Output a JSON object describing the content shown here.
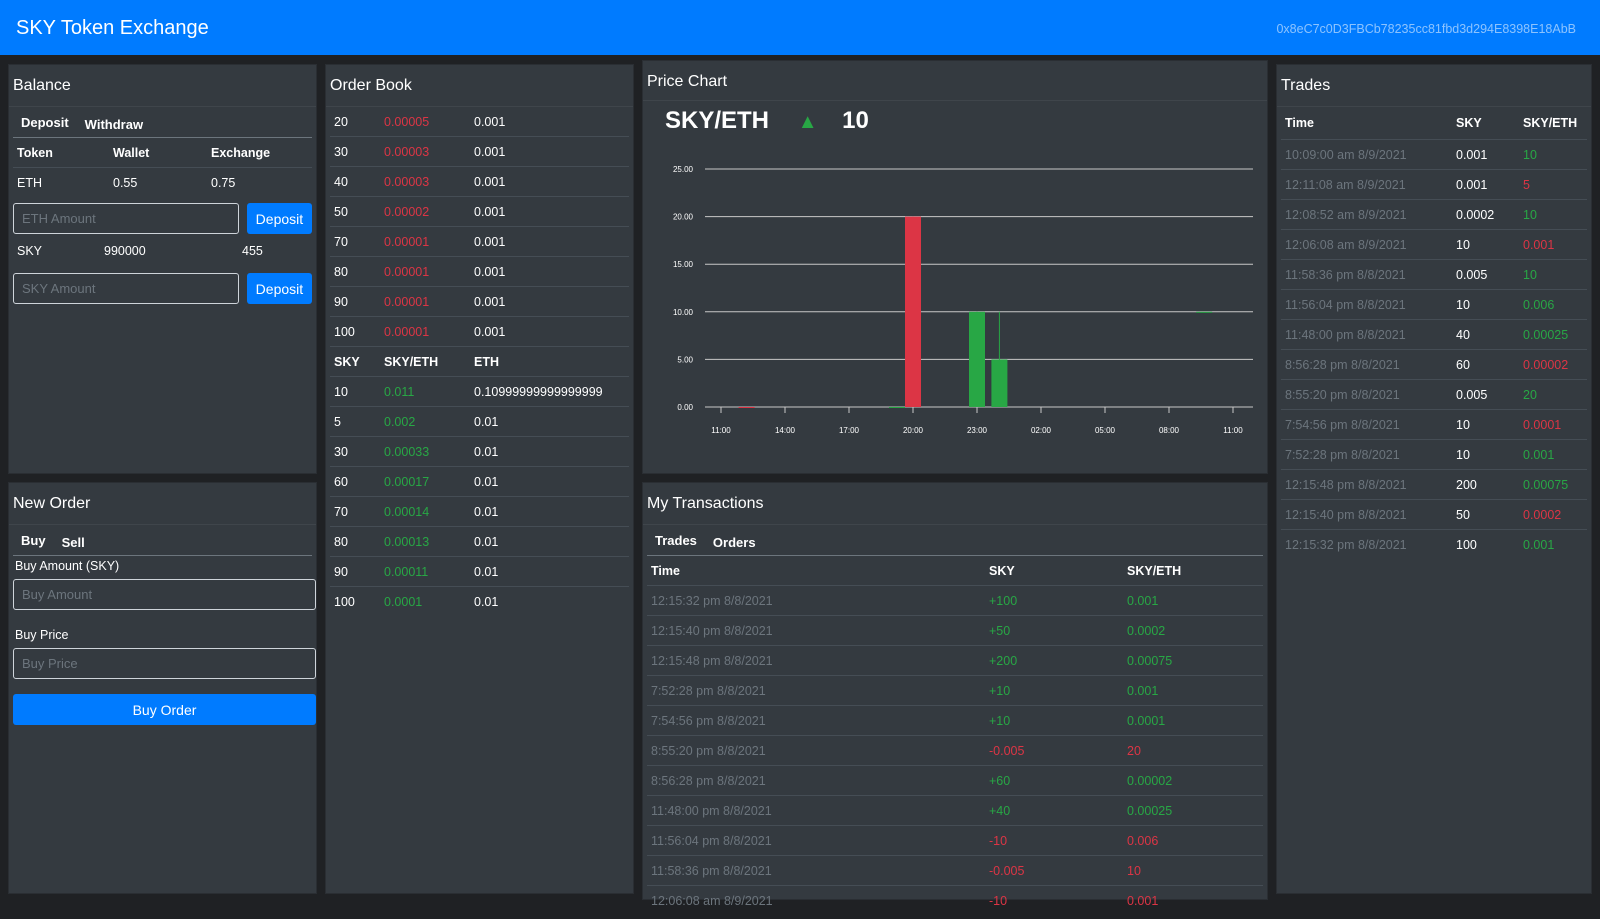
{
  "header": {
    "title": "SKY Token Exchange",
    "account": "0x8eC7c0D3FBCb78235cc81fbd3d294E8398E18AbB"
  },
  "balance": {
    "title": "Balance",
    "tabs": [
      "Deposit",
      "Withdraw"
    ],
    "columns": [
      "Token",
      "Wallet",
      "Exchange"
    ],
    "eth": {
      "token": "ETH",
      "wallet": "0.55",
      "exchange": "0.75",
      "placeholder": "ETH Amount",
      "button": "Deposit"
    },
    "sky": {
      "token": "SKY",
      "wallet": "990000",
      "exchange": "455",
      "placeholder": "SKY Amount",
      "button": "Deposit"
    }
  },
  "new_order": {
    "title": "New Order",
    "tabs": [
      "Buy",
      "Sell"
    ],
    "amount_label": "Buy Amount (SKY)",
    "amount_placeholder": "Buy Amount",
    "price_label": "Buy Price",
    "price_placeholder": "Buy Price",
    "submit": "Buy Order"
  },
  "order_book": {
    "title": "Order Book",
    "sell_orders": [
      [
        "20",
        "0.00005",
        "0.001"
      ],
      [
        "30",
        "0.00003",
        "0.001"
      ],
      [
        "40",
        "0.00003",
        "0.001"
      ],
      [
        "50",
        "0.00002",
        "0.001"
      ],
      [
        "70",
        "0.00001",
        "0.001"
      ],
      [
        "80",
        "0.00001",
        "0.001"
      ],
      [
        "90",
        "0.00001",
        "0.001"
      ],
      [
        "100",
        "0.00001",
        "0.001"
      ]
    ],
    "columns": [
      "SKY",
      "SKY/ETH",
      "ETH"
    ],
    "buy_orders": [
      [
        "10",
        "0.011",
        "0.10999999999999999"
      ],
      [
        "5",
        "0.002",
        "0.01"
      ],
      [
        "30",
        "0.00033",
        "0.01"
      ],
      [
        "60",
        "0.00017",
        "0.01"
      ],
      [
        "70",
        "0.00014",
        "0.01"
      ],
      [
        "80",
        "0.00013",
        "0.01"
      ],
      [
        "90",
        "0.00011",
        "0.01"
      ],
      [
        "100",
        "0.0001",
        "0.01"
      ]
    ]
  },
  "price_chart": {
    "title": "Price Chart",
    "pair": "SKY/ETH",
    "last_price": "10",
    "trend": "up",
    "trend_color": "#28a745"
  },
  "chart_data": {
    "type": "candlestick",
    "y_ticks": [
      "0.00",
      "5.00",
      "10.00",
      "15.00",
      "20.00",
      "25.00"
    ],
    "ylim": [
      0,
      25
    ],
    "x_ticks": [
      "11:00",
      "14:00",
      "17:00",
      "20:00",
      "23:00",
      "02:00",
      "05:00",
      "08:00",
      "11:00"
    ],
    "candles": [
      {
        "pos": 0.4,
        "open": 0.0002,
        "close": 0.0001,
        "high": 0.0002,
        "low": 0.0001,
        "color": "#dc3545"
      },
      {
        "pos": 2.75,
        "open": 2e-05,
        "close": 0.001,
        "high": 0.001,
        "low": 2e-05,
        "color": "#28a745"
      },
      {
        "pos": 3.0,
        "open": 20,
        "close": 2e-05,
        "high": 20,
        "low": 2e-05,
        "color": "#dc3545"
      },
      {
        "pos": 4.0,
        "open": 0.005,
        "close": 10,
        "high": 10,
        "low": 0.005,
        "color": "#28a745"
      },
      {
        "pos": 4.35,
        "open": 0.001,
        "close": 5,
        "high": 10,
        "low": 0.001,
        "color": "#28a745"
      },
      {
        "pos": 7.55,
        "open": 10,
        "close": 10,
        "high": 10,
        "low": 10,
        "color": "#28a745"
      }
    ]
  },
  "my_transactions": {
    "title": "My Transactions",
    "tabs": [
      "Trades",
      "Orders"
    ],
    "columns": [
      "Time",
      "SKY",
      "SKY/ETH"
    ],
    "rows": [
      {
        "time": "12:15:32 pm 8/8/2021",
        "sky": "+100",
        "price": "0.001",
        "side": "buy"
      },
      {
        "time": "12:15:40 pm 8/8/2021",
        "sky": "+50",
        "price": "0.0002",
        "side": "buy"
      },
      {
        "time": "12:15:48 pm 8/8/2021",
        "sky": "+200",
        "price": "0.00075",
        "side": "buy"
      },
      {
        "time": "7:52:28 pm 8/8/2021",
        "sky": "+10",
        "price": "0.001",
        "side": "buy"
      },
      {
        "time": "7:54:56 pm 8/8/2021",
        "sky": "+10",
        "price": "0.0001",
        "side": "buy"
      },
      {
        "time": "8:55:20 pm 8/8/2021",
        "sky": "-0.005",
        "price": "20",
        "side": "sell"
      },
      {
        "time": "8:56:28 pm 8/8/2021",
        "sky": "+60",
        "price": "0.00002",
        "side": "buy"
      },
      {
        "time": "11:48:00 pm 8/8/2021",
        "sky": "+40",
        "price": "0.00025",
        "side": "buy"
      },
      {
        "time": "11:56:04 pm 8/8/2021",
        "sky": "-10",
        "price": "0.006",
        "side": "sell"
      },
      {
        "time": "11:58:36 pm 8/8/2021",
        "sky": "-0.005",
        "price": "10",
        "side": "sell"
      },
      {
        "time": "12:06:08 am 8/9/2021",
        "sky": "-10",
        "price": "0.001",
        "side": "sell"
      }
    ]
  },
  "trades": {
    "title": "Trades",
    "columns": [
      "Time",
      "SKY",
      "SKY/ETH"
    ],
    "rows": [
      {
        "time": "10:09:00 am 8/9/2021",
        "sky": "0.001",
        "price": "10",
        "dir": "up"
      },
      {
        "time": "12:11:08 am 8/9/2021",
        "sky": "0.001",
        "price": "5",
        "dir": "down"
      },
      {
        "time": "12:08:52 am 8/9/2021",
        "sky": "0.0002",
        "price": "10",
        "dir": "up"
      },
      {
        "time": "12:06:08 am 8/9/2021",
        "sky": "10",
        "price": "0.001",
        "dir": "down"
      },
      {
        "time": "11:58:36 pm 8/8/2021",
        "sky": "0.005",
        "price": "10",
        "dir": "up"
      },
      {
        "time": "11:56:04 pm 8/8/2021",
        "sky": "10",
        "price": "0.006",
        "dir": "up"
      },
      {
        "time": "11:48:00 pm 8/8/2021",
        "sky": "40",
        "price": "0.00025",
        "dir": "up"
      },
      {
        "time": "8:56:28 pm 8/8/2021",
        "sky": "60",
        "price": "0.00002",
        "dir": "down"
      },
      {
        "time": "8:55:20 pm 8/8/2021",
        "sky": "0.005",
        "price": "20",
        "dir": "up"
      },
      {
        "time": "7:54:56 pm 8/8/2021",
        "sky": "10",
        "price": "0.0001",
        "dir": "down"
      },
      {
        "time": "7:52:28 pm 8/8/2021",
        "sky": "10",
        "price": "0.001",
        "dir": "up"
      },
      {
        "time": "12:15:48 pm 8/8/2021",
        "sky": "200",
        "price": "0.00075",
        "dir": "up"
      },
      {
        "time": "12:15:40 pm 8/8/2021",
        "sky": "50",
        "price": "0.0002",
        "dir": "down"
      },
      {
        "time": "12:15:32 pm 8/8/2021",
        "sky": "100",
        "price": "0.001",
        "dir": "up"
      }
    ]
  }
}
